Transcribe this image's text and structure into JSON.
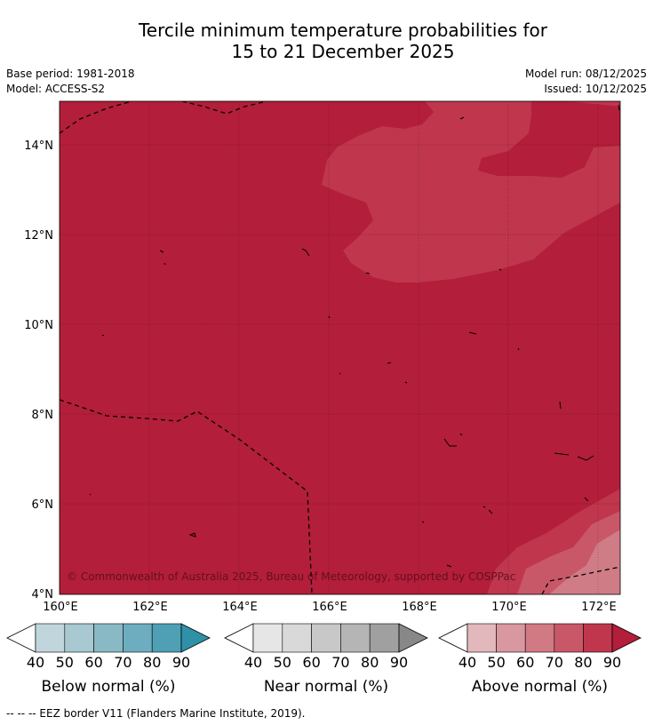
{
  "title": {
    "line1": "Tercile minimum temperature probabilities for",
    "line2": "15 to 21 December 2025"
  },
  "meta": {
    "base_period": "Base period: 1981-2018",
    "model": "Model: ACCESS-S2",
    "model_run": "Model run: 08/12/2025",
    "issued": "Issued: 10/12/2025"
  },
  "map": {
    "latitude_ticks": [
      "14°N",
      "12°N",
      "10°N",
      "8°N",
      "6°N",
      "4°N"
    ],
    "longitude_ticks": [
      "160°E",
      "162°E",
      "164°E",
      "166°E",
      "168°E",
      "170°E",
      "172°E"
    ],
    "copyright": "© Commonwealth of Australia 2025, Bureau of Meteorology, supported by COSPPac",
    "extent": {
      "lon_min": 160,
      "lon_max": 172.5,
      "lat_min": 4,
      "lat_max": 15
    },
    "fill_colors": {
      "above_80_90": "#b31e3a",
      "above_70_80": "#bf364d",
      "above_60_70": "#c85868",
      "above_50_60": "#d07c86"
    }
  },
  "colorbars": [
    {
      "name": "below",
      "label": "Below normal (%)",
      "ticks": [
        "40",
        "50",
        "60",
        "70",
        "80",
        "90"
      ],
      "colors": [
        "#c0d6dc",
        "#a8c9d1",
        "#8ab9c6",
        "#6eadbf",
        "#4fa0b4",
        "#2e91a8"
      ]
    },
    {
      "name": "near",
      "label": "Near normal (%)",
      "ticks": [
        "40",
        "50",
        "60",
        "70",
        "80",
        "90"
      ],
      "colors": [
        "#e6e6e6",
        "#d9d9d9",
        "#c8c8c8",
        "#b5b5b5",
        "#a0a0a0",
        "#888888"
      ]
    },
    {
      "name": "above",
      "label": "Above normal (%)",
      "ticks": [
        "40",
        "50",
        "60",
        "70",
        "80",
        "90"
      ],
      "colors": [
        "#e2b8bd",
        "#d9979f",
        "#d27a84",
        "#c85868",
        "#bf364d",
        "#b31e3a"
      ]
    }
  ],
  "footer": "-- -- -- EEZ border V11 (Flanders Marine Institute, 2019)."
}
